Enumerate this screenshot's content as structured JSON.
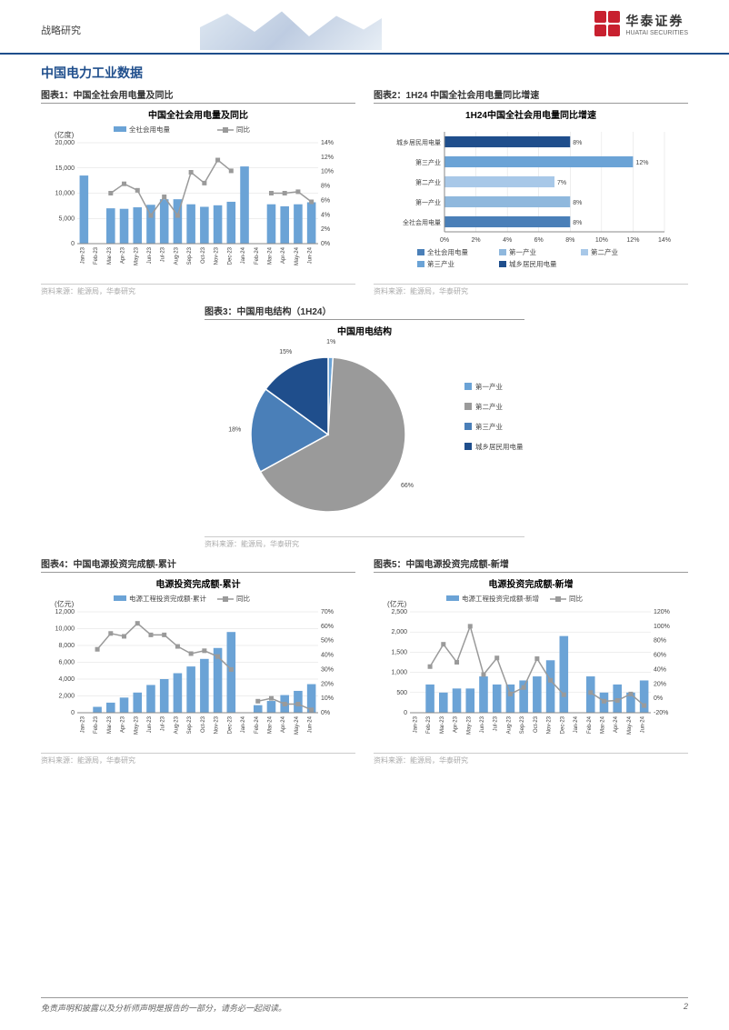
{
  "header": {
    "category": "战略研究",
    "logo_cn": "华泰证券",
    "logo_en": "HUATAI SECURITIES"
  },
  "section_title": "中国电力工业数据",
  "chart1": {
    "label": "图表1：中国全社会用电量及同比",
    "inner_title": "中国全社会用电量及同比",
    "type": "bar+line",
    "unit_left": "(亿度)",
    "legend_bar": "全社会用电量",
    "legend_line": "同比",
    "months": [
      "Jan-23",
      "Feb-23",
      "Mar-23",
      "Apr-23",
      "May-23",
      "Jun-23",
      "Jul-23",
      "Aug-23",
      "Sep-23",
      "Oct-23",
      "Nov-23",
      "Dec-23",
      "Jan-24",
      "Feb-24",
      "Mar-24",
      "Apr-24",
      "May-24",
      "Jun-24"
    ],
    "bar_values": [
      13500,
      null,
      7000,
      6900,
      7200,
      7700,
      8800,
      8800,
      7800,
      7300,
      7600,
      8300,
      15300,
      null,
      7800,
      7400,
      7800,
      8200
    ],
    "line_values": [
      null,
      null,
      7.0,
      8.3,
      7.4,
      3.9,
      6.5,
      3.9,
      9.9,
      8.4,
      11.6,
      10.1,
      null,
      null,
      7.0,
      7.0,
      7.2,
      5.8
    ],
    "y_left_max": 20000,
    "y_left_step": 5000,
    "y_right_max": 14,
    "y_right_step": 2,
    "bar_color": "#6ba3d6",
    "line_color": "#9a9a9a",
    "source": "资料来源：能源局，华泰研究"
  },
  "chart2": {
    "label": "图表2：1H24 中国全社会用电量同比增速",
    "inner_title": "1H24中国全社会用电量同比增速",
    "type": "hbar",
    "categories": [
      "城乡居民用电量",
      "第三产业",
      "第二产业",
      "第一产业",
      "全社会用电量"
    ],
    "values": [
      8,
      12,
      7,
      8,
      8
    ],
    "colors": [
      "#1f4e8c",
      "#6ba3d6",
      "#a8c8e8",
      "#8fb8dd",
      "#4a7fb8"
    ],
    "x_max": 14,
    "x_step": 2,
    "legend_items": [
      "全社会用电量",
      "第一产业",
      "第二产业",
      "第三产业",
      "城乡居民用电量"
    ],
    "legend_colors": [
      "#4a7fb8",
      "#8fb8dd",
      "#a8c8e8",
      "#6ba3d6",
      "#1f4e8c"
    ],
    "source": "资料来源：能源局，华泰研究"
  },
  "chart3": {
    "label": "图表3：中国用电结构（1H24）",
    "inner_title": "中国用电结构",
    "type": "pie",
    "slices": [
      {
        "label": "第一产业",
        "value": 1,
        "color": "#6ba3d6"
      },
      {
        "label": "第二产业",
        "value": 66,
        "color": "#9a9a9a"
      },
      {
        "label": "第三产业",
        "value": 18,
        "color": "#4a7fb8"
      },
      {
        "label": "城乡居民用电量",
        "value": 15,
        "color": "#1f4e8c"
      }
    ],
    "source": "资料来源：能源局，华泰研究"
  },
  "chart4": {
    "label": "图表4：中国电源投资完成额-累计",
    "inner_title": "电源投资完成额-累计",
    "type": "bar+line",
    "unit_left": "(亿元)",
    "legend_bar": "电源工程投资完成额-累计",
    "legend_line": "同比",
    "months": [
      "Jan-23",
      "Feb-23",
      "Mar-23",
      "Apr-23",
      "May-23",
      "Jun-23",
      "Jul-23",
      "Aug-23",
      "Sep-23",
      "Oct-23",
      "Nov-23",
      "Dec-23",
      "Jan-24",
      "Feb-24",
      "Mar-24",
      "Apr-24",
      "May-24",
      "Jun-24"
    ],
    "bar_values": [
      null,
      700,
      1200,
      1800,
      2400,
      3300,
      4000,
      4700,
      5500,
      6400,
      7700,
      9600,
      null,
      900,
      1400,
      2100,
      2600,
      3400
    ],
    "line_values": [
      null,
      44,
      55,
      53,
      62,
      54,
      54,
      46,
      41,
      43,
      39,
      30,
      null,
      8,
      10,
      6,
      6,
      2
    ],
    "y_left_max": 12000,
    "y_left_step": 2000,
    "y_right_max": 70,
    "y_right_step": 10,
    "bar_color": "#6ba3d6",
    "line_color": "#9a9a9a",
    "source": "资料来源：能源局，华泰研究"
  },
  "chart5": {
    "label": "图表5：中国电源投资完成额-新增",
    "inner_title": "电源投资完成额-新增",
    "type": "bar+line",
    "unit_left": "(亿元)",
    "legend_bar": "电源工程投资完成额-新增",
    "legend_line": "同比",
    "months": [
      "Jan-23",
      "Feb-23",
      "Mar-23",
      "Apr-23",
      "May-23",
      "Jun-23",
      "Jul-23",
      "Aug-23",
      "Sep-23",
      "Oct-23",
      "Nov-23",
      "Dec-23",
      "Jan-24",
      "Feb-24",
      "Mar-24",
      "Apr-24",
      "May-24",
      "Jun-24"
    ],
    "bar_values": [
      null,
      700,
      500,
      600,
      600,
      900,
      700,
      700,
      800,
      900,
      1300,
      1900,
      null,
      900,
      500,
      700,
      500,
      800
    ],
    "line_values": [
      null,
      44,
      75,
      50,
      100,
      33,
      56,
      6,
      15,
      55,
      25,
      5,
      null,
      8,
      -4,
      -3,
      6,
      -10
    ],
    "y_left_max": 2500,
    "y_left_step": 500,
    "y_right_min": -20,
    "y_right_max": 120,
    "y_right_step": 20,
    "bar_color": "#6ba3d6",
    "line_color": "#9a9a9a",
    "source": "资料来源：能源局，华泰研究"
  },
  "footer": {
    "disclaimer": "免责声明和披露以及分析师声明是报告的一部分，请务必一起阅读。",
    "page": "2"
  }
}
